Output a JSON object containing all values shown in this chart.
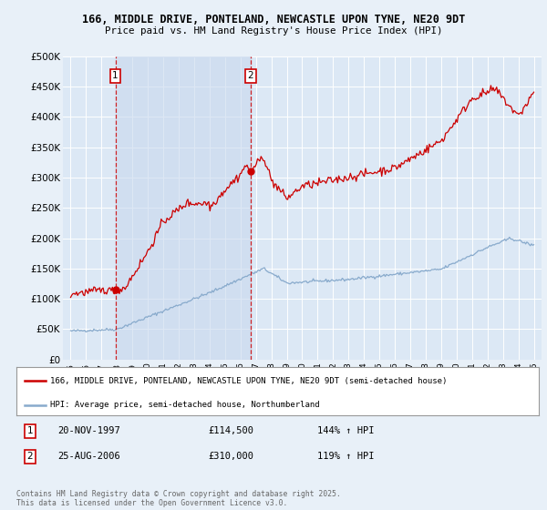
{
  "title_line1": "166, MIDDLE DRIVE, PONTELAND, NEWCASTLE UPON TYNE, NE20 9DT",
  "title_line2": "Price paid vs. HM Land Registry's House Price Index (HPI)",
  "background_color": "#e8f0f8",
  "plot_bg_color": "#dce8f5",
  "shade_color": "#c8d8ee",
  "line1_color": "#cc0000",
  "line2_color": "#88aacc",
  "annotation1": {
    "label": "1",
    "date": "20-NOV-1997",
    "price": "£114,500",
    "pct": "144% ↑ HPI",
    "x_year": 1997.9
  },
  "annotation2": {
    "label": "2",
    "date": "25-AUG-2006",
    "price": "£310,000",
    "pct": "119% ↑ HPI",
    "x_year": 2006.65
  },
  "legend_line1": "166, MIDDLE DRIVE, PONTELAND, NEWCASTLE UPON TYNE, NE20 9DT (semi-detached house)",
  "legend_line2": "HPI: Average price, semi-detached house, Northumberland",
  "copyright": "Contains HM Land Registry data © Crown copyright and database right 2025.\nThis data is licensed under the Open Government Licence v3.0.",
  "ylim": [
    0,
    500000
  ],
  "xlim": [
    1994.5,
    2025.5
  ],
  "yticks": [
    0,
    50000,
    100000,
    150000,
    200000,
    250000,
    300000,
    350000,
    400000,
    450000,
    500000
  ],
  "ytick_labels": [
    "£0",
    "£50K",
    "£100K",
    "£150K",
    "£200K",
    "£250K",
    "£300K",
    "£350K",
    "£400K",
    "£450K",
    "£500K"
  ],
  "xticks": [
    1995,
    1996,
    1997,
    1998,
    1999,
    2000,
    2001,
    2002,
    2003,
    2004,
    2005,
    2006,
    2007,
    2008,
    2009,
    2010,
    2011,
    2012,
    2013,
    2014,
    2015,
    2016,
    2017,
    2018,
    2019,
    2020,
    2021,
    2022,
    2023,
    2024,
    2025
  ]
}
